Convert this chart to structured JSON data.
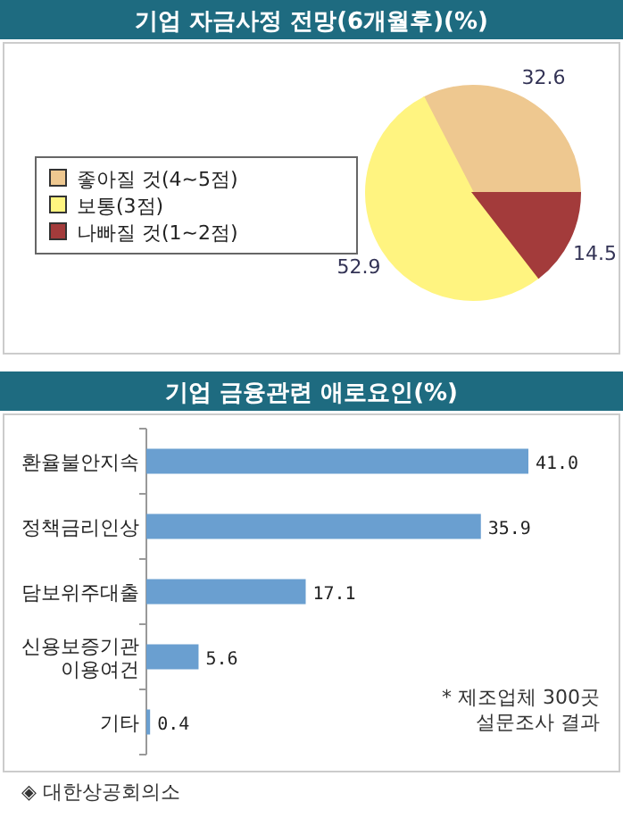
{
  "chart_data": [
    {
      "type": "pie",
      "title": "기업 자금사정 전망(6개월후)(%)",
      "categories": [
        "좋아질 것(4~5점)",
        "보통(3점)",
        "나빠질 것(1~2점)"
      ],
      "values": [
        32.6,
        52.9,
        14.5
      ],
      "colors": [
        "#eec890",
        "#fff480",
        "#a33b3b"
      ],
      "data_labels": true,
      "legend": "left"
    },
    {
      "type": "bar",
      "orientation": "horizontal",
      "title": "기업 금융관련 애로요인(%)",
      "categories": [
        "환율불안지속",
        "정책금리인상",
        "담보위주대출",
        "신용보증기관 이용여건",
        "기타"
      ],
      "values": [
        41.0,
        35.9,
        17.1,
        5.6,
        0.4
      ],
      "value_labels": [
        "41.0",
        "35.9",
        "17.1",
        "5.6",
        "0.4"
      ],
      "color": "#6a9fd0",
      "annotations": [
        "* 제조업체 300곳 설문조사 결과",
        "◈ 대한상공회의소"
      ]
    }
  ]
}
